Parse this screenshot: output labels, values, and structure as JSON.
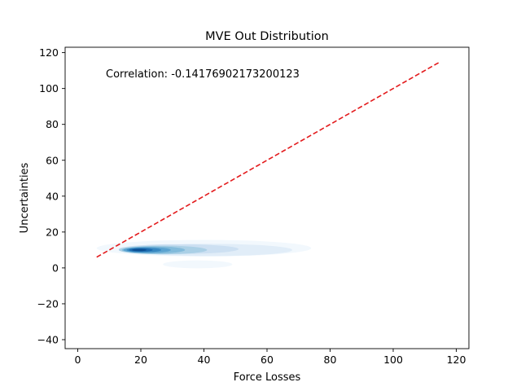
{
  "chart_data": {
    "type": "scatter",
    "title": "MVE Out Distribution",
    "xlabel": "Force Losses",
    "ylabel": "Uncertainties",
    "xlim": [
      -4,
      124
    ],
    "ylim": [
      -45,
      123
    ],
    "xticks": [
      0,
      20,
      40,
      60,
      80,
      100,
      120
    ],
    "yticks": [
      -40,
      -20,
      0,
      20,
      40,
      60,
      80,
      100,
      120
    ],
    "annotation": "Correlation: -0.14176902173200123",
    "grid": false,
    "reference_line": {
      "style": "dashed",
      "color": "#e31a1c",
      "x": [
        6,
        115
      ],
      "y": [
        6,
        115
      ]
    },
    "density": {
      "colormap": "Blues",
      "levels": [
        {
          "center": [
            40,
            11
          ],
          "rx": 34,
          "ry": 4.6,
          "color": "#f2f8fd"
        },
        {
          "center": [
            38,
            2
          ],
          "rx": 11,
          "ry": 2.2,
          "color": "#f2f8fd"
        },
        {
          "center": [
            42,
            10
          ],
          "rx": 26,
          "ry": 3.4,
          "color": "#e1edf8"
        },
        {
          "center": [
            32,
            10.5
          ],
          "rx": 19,
          "ry": 2.7,
          "color": "#cde0f2"
        },
        {
          "center": [
            27,
            10
          ],
          "rx": 14,
          "ry": 2.4,
          "color": "#abd0e6"
        },
        {
          "center": [
            24,
            10
          ],
          "rx": 10,
          "ry": 2.0,
          "color": "#82bbdb"
        },
        {
          "center": [
            22,
            10
          ],
          "rx": 7.5,
          "ry": 1.6,
          "color": "#5ba3d0"
        },
        {
          "center": [
            21,
            10
          ],
          "rx": 5.5,
          "ry": 1.25,
          "color": "#3787c0"
        },
        {
          "center": [
            20,
            10
          ],
          "rx": 3.8,
          "ry": 0.95,
          "color": "#1c6aaf"
        },
        {
          "center": [
            19.5,
            10
          ],
          "rx": 2.3,
          "ry": 0.65,
          "color": "#0b4f93"
        }
      ]
    }
  }
}
